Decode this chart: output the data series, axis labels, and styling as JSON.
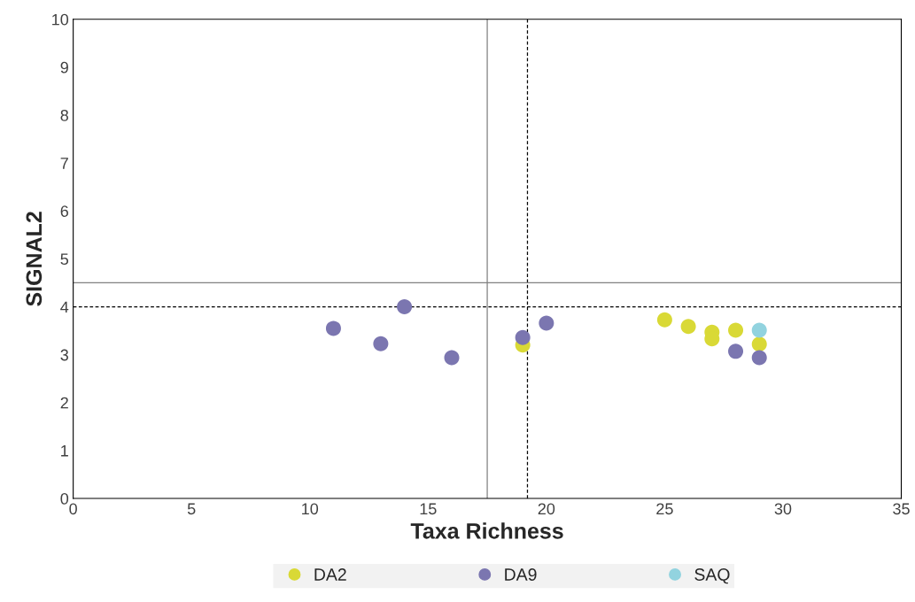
{
  "chart_data": {
    "type": "scatter",
    "xlabel": "Taxa Richness",
    "ylabel": "SIGNAL2",
    "xlim": [
      0,
      35
    ],
    "xticks": [
      0,
      5,
      10,
      15,
      20,
      25,
      30,
      35
    ],
    "ylim": [
      0,
      10
    ],
    "yticks": [
      0,
      1,
      2,
      3,
      4,
      5,
      6,
      7,
      8,
      9,
      10
    ],
    "marker": "circle",
    "legend": "bottom",
    "grid": false,
    "series": [
      {
        "name": "DA2",
        "color": "#d9d936",
        "x": [
          19,
          25,
          26,
          27,
          27,
          28,
          29
        ],
        "values": [
          3.2,
          3.73,
          3.59,
          3.47,
          3.33,
          3.51,
          3.22
        ]
      },
      {
        "name": "DA9",
        "color": "#7b76b0",
        "x": [
          11,
          13,
          14,
          16,
          19,
          20,
          28,
          29
        ],
        "values": [
          3.55,
          3.23,
          4.0,
          2.94,
          3.36,
          3.66,
          3.07,
          2.94
        ]
      },
      {
        "name": "SAQ",
        "color": "#92d3df",
        "x": [
          29
        ],
        "values": [
          3.51
        ]
      }
    ],
    "ref_lines": [
      {
        "axis": "x",
        "value": 17.5,
        "color": "#808080",
        "line_style": "solid"
      },
      {
        "axis": "x",
        "value": 19.2,
        "color": "#000000",
        "line_style": "dashed"
      },
      {
        "axis": "y",
        "value": 4.5,
        "color": "#808080",
        "line_style": "solid"
      },
      {
        "axis": "y",
        "value": 4.0,
        "color": "#000000",
        "line_style": "dashed"
      }
    ]
  }
}
